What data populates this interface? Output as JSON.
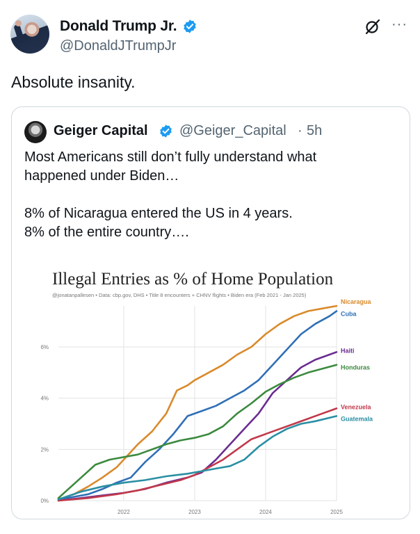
{
  "post": {
    "author": {
      "display_name": "Donald Trump Jr.",
      "handle": "@DonaldJTrumpJr",
      "verified": true,
      "verified_color": "#1d9bf0"
    },
    "text": "Absolute insanity.",
    "icons": [
      "grok-icon",
      "more-icon"
    ],
    "more_label": "···"
  },
  "quote": {
    "author": {
      "display_name": "Geiger Capital",
      "handle": "@Geiger_Capital",
      "separator": "·",
      "time": "5h",
      "verified": true
    },
    "lines": [
      "Most Americans still don’t fully understand what",
      "happened under Biden…",
      "8% of Nicaragua entered the US in 4 years.",
      "8% of the entire country…."
    ]
  },
  "chart_data": {
    "type": "line",
    "title": "Illegal Entries as % of Home Population",
    "subtitle": "@jonatanpallesen  •  Data: cbp.gov, DHS  •  Title 8 encounters + CHNV flights  •  Biden era (Feb 2021 - Jan 2025)",
    "x_ticks": [
      "2022",
      "2023",
      "2024",
      "2025"
    ],
    "y_ticks": [
      "0%",
      "2%",
      "4%",
      "6%"
    ],
    "xlim": [
      2021.08,
      2025.0
    ],
    "ylim": [
      0,
      7.6
    ],
    "grid": true,
    "series": [
      {
        "name": "Nicaragua",
        "color": "#d98a2b",
        "x": [
          2021.08,
          2021.3,
          2021.5,
          2021.7,
          2021.9,
          2022.0,
          2022.2,
          2022.4,
          2022.6,
          2022.75,
          2022.9,
          2023.0,
          2023.2,
          2023.4,
          2023.6,
          2023.8,
          2024.0,
          2024.2,
          2024.4,
          2024.6,
          2024.8,
          2025.0
        ],
        "y": [
          0.05,
          0.25,
          0.55,
          0.9,
          1.3,
          1.6,
          2.2,
          2.7,
          3.4,
          4.3,
          4.5,
          4.7,
          5.0,
          5.3,
          5.7,
          6.0,
          6.5,
          6.9,
          7.2,
          7.4,
          7.5,
          7.6
        ]
      },
      {
        "name": "Cuba",
        "color": "#2f6fb6",
        "x": [
          2021.08,
          2021.3,
          2021.5,
          2021.7,
          2021.9,
          2022.1,
          2022.3,
          2022.5,
          2022.7,
          2022.9,
          2023.1,
          2023.3,
          2023.5,
          2023.7,
          2023.9,
          2024.1,
          2024.3,
          2024.5,
          2024.7,
          2024.9,
          2025.0
        ],
        "y": [
          0.05,
          0.15,
          0.25,
          0.45,
          0.7,
          0.9,
          1.5,
          2.0,
          2.6,
          3.3,
          3.5,
          3.7,
          4.0,
          4.3,
          4.7,
          5.3,
          5.9,
          6.5,
          6.9,
          7.2,
          7.4
        ]
      },
      {
        "name": "Haiti",
        "color": "#6a2c91",
        "x": [
          2021.08,
          2021.4,
          2021.7,
          2022.0,
          2022.3,
          2022.6,
          2022.9,
          2023.1,
          2023.3,
          2023.5,
          2023.7,
          2023.9,
          2024.1,
          2024.3,
          2024.5,
          2024.7,
          2024.9,
          2025.0
        ],
        "y": [
          0.0,
          0.1,
          0.2,
          0.3,
          0.45,
          0.7,
          0.9,
          1.1,
          1.6,
          2.2,
          2.8,
          3.4,
          4.2,
          4.7,
          5.2,
          5.5,
          5.7,
          5.8
        ]
      },
      {
        "name": "Honduras",
        "color": "#3b8a3e",
        "x": [
          2021.08,
          2021.2,
          2021.4,
          2021.6,
          2021.8,
          2022.0,
          2022.2,
          2022.4,
          2022.6,
          2022.8,
          2023.0,
          2023.2,
          2023.4,
          2023.6,
          2023.8,
          2024.0,
          2024.2,
          2024.4,
          2024.6,
          2024.8,
          2025.0
        ],
        "y": [
          0.1,
          0.4,
          0.9,
          1.4,
          1.6,
          1.7,
          1.8,
          2.0,
          2.2,
          2.35,
          2.45,
          2.6,
          2.9,
          3.4,
          3.8,
          4.25,
          4.55,
          4.8,
          5.0,
          5.15,
          5.3
        ]
      },
      {
        "name": "Venezuela",
        "color": "#c0394b",
        "x": [
          2021.08,
          2021.5,
          2021.9,
          2022.2,
          2022.5,
          2022.8,
          2023.0,
          2023.2,
          2023.4,
          2023.6,
          2023.8,
          2024.0,
          2024.2,
          2024.4,
          2024.6,
          2024.8,
          2025.0
        ],
        "y": [
          0.0,
          0.1,
          0.25,
          0.4,
          0.6,
          0.8,
          1.0,
          1.3,
          1.6,
          2.0,
          2.4,
          2.6,
          2.8,
          3.0,
          3.2,
          3.4,
          3.6
        ]
      },
      {
        "name": "Guatemala",
        "color": "#2a8fa3",
        "x": [
          2021.08,
          2021.4,
          2021.7,
          2022.0,
          2022.3,
          2022.6,
          2022.9,
          2023.1,
          2023.3,
          2023.5,
          2023.7,
          2023.9,
          2024.1,
          2024.3,
          2024.5,
          2024.7,
          2025.0
        ],
        "y": [
          0.05,
          0.35,
          0.55,
          0.7,
          0.8,
          0.95,
          1.05,
          1.15,
          1.25,
          1.35,
          1.6,
          2.1,
          2.5,
          2.8,
          3.0,
          3.1,
          3.3
        ]
      }
    ]
  }
}
